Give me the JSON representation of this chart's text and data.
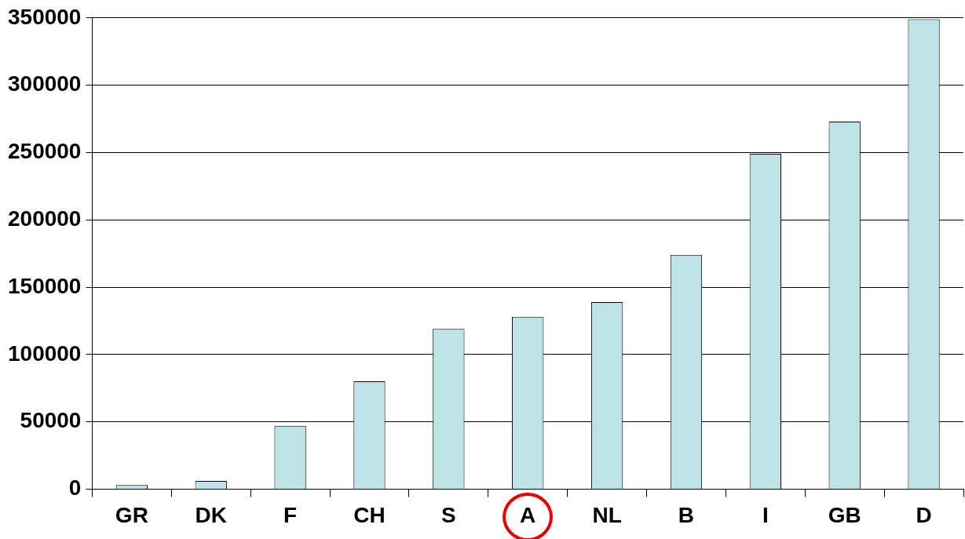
{
  "chart_data": {
    "type": "bar",
    "categories": [
      "GR",
      "DK",
      "F",
      "CH",
      "S",
      "A",
      "NL",
      "B",
      "I",
      "GB",
      "D"
    ],
    "values": [
      3000,
      6000,
      47000,
      80000,
      119000,
      128000,
      139000,
      174000,
      249000,
      273000,
      349000
    ],
    "color": "#bde3e6",
    "ylim": [
      0,
      350000
    ],
    "yticks": [
      0,
      50000,
      100000,
      150000,
      200000,
      250000,
      300000,
      350000
    ],
    "grid": "y",
    "legend": false
  }
}
